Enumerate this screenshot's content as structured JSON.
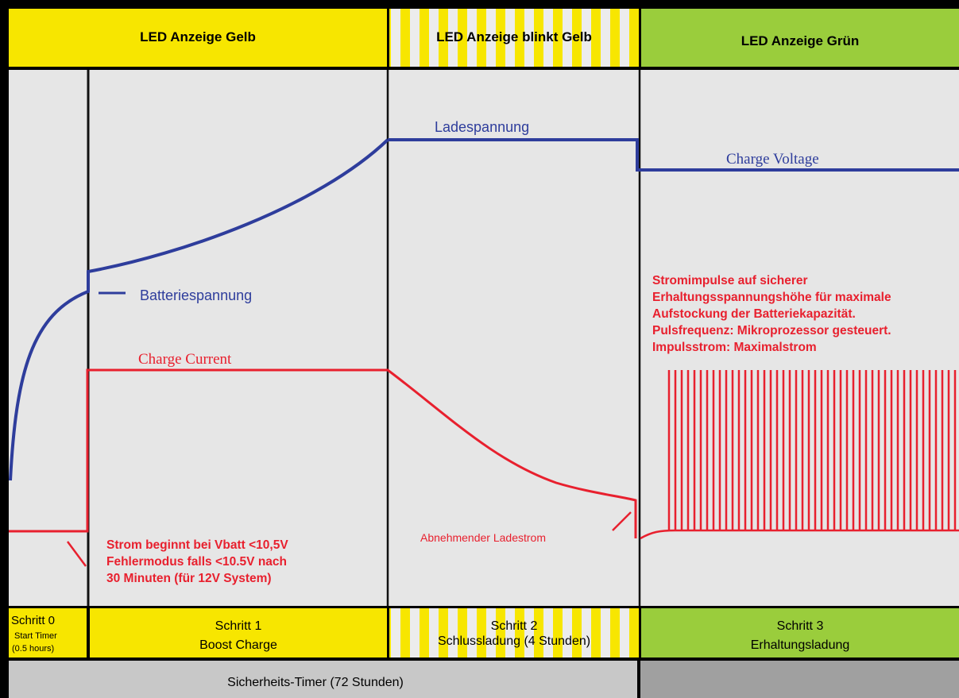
{
  "header": {
    "phase1": "LED Anzeige Gelb",
    "phase2": "LED Anzeige blinkt Gelb",
    "phase3": "LED Anzeige Grün"
  },
  "curves": {
    "ladespannung": "Ladespannung",
    "charge_voltage": "Charge  Voltage",
    "batteriespannung": "Batteriespannung",
    "charge_current": "Charge  Current",
    "abnehmender_ladestrom": "Abnehmender Ladestrom"
  },
  "notes": {
    "step0": [
      "Strom beginnt bei Vbatt <10,5V",
      "Fehlermodus falls <10.5V nach",
      "30 Minuten (für 12V System)"
    ],
    "step3": [
      "Stromimpulse auf sicherer",
      "Erhaltungsspannungshöhe für maximale",
      "Aufstockung der Batteriekapazität.",
      "Pulsfrequenz: Mikroprozessor gesteuert.",
      "Impulsstrom: Maximalstrom"
    ]
  },
  "steps": {
    "s0": {
      "title": "Schritt 0",
      "line1": "Start Timer",
      "line2": "(0.5 hours)"
    },
    "s1": {
      "title": "Schritt 1",
      "subtitle": "Boost Charge"
    },
    "s2": {
      "title": "Schritt 2",
      "subtitle": "Schlussladung  (4 Stunden)"
    },
    "s3": {
      "title": "Schritt 3",
      "subtitle": "Erhaltungsladung"
    }
  },
  "footer": {
    "timer": "Sicherheits-Timer (72 Stunden)"
  },
  "colors": {
    "yellow": "#F7E600",
    "green": "#9ACD3C",
    "plot_bg": "#E6E6E6",
    "voltage": "#2E3D9C",
    "current": "#E8202E",
    "footer_gray": "#C8C8C8",
    "footer_dark": "#A0A0A0"
  }
}
